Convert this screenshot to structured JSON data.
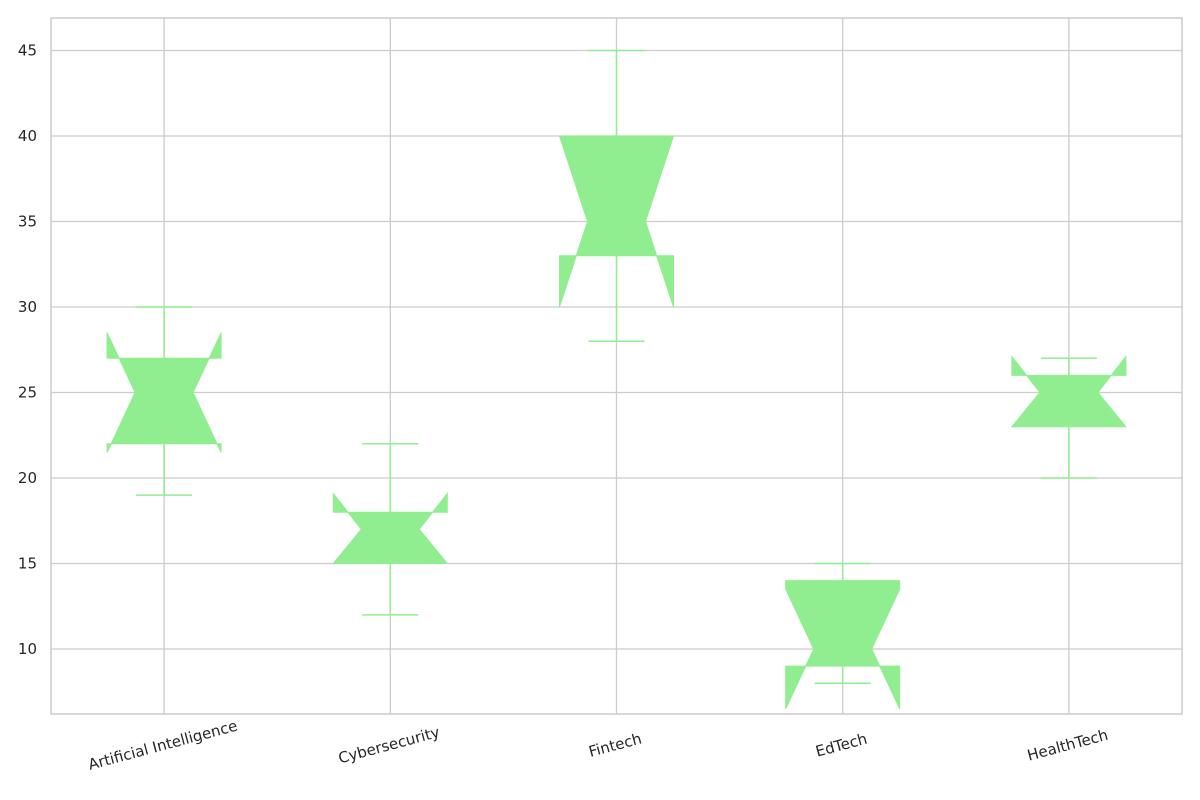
{
  "chart_data": {
    "type": "box",
    "notched": true,
    "categories": [
      "Artificial Intelligence",
      "Cybersecurity",
      "Fintech",
      "EdTech",
      "HealthTech"
    ],
    "boxes": [
      {
        "category": "Artificial Intelligence",
        "whisker_low": 19,
        "q1": 22,
        "median": 25,
        "q3": 27,
        "whisker_high": 30,
        "notch_low": 21.5,
        "notch_high": 28.5
      },
      {
        "category": "Cybersecurity",
        "whisker_low": 12,
        "q1": 15,
        "median": 17,
        "q3": 18,
        "whisker_high": 22,
        "notch_low": 15,
        "notch_high": 19.1
      },
      {
        "category": "Fintech",
        "whisker_low": 28,
        "q1": 33,
        "median": 35,
        "q3": 40,
        "whisker_high": 45,
        "notch_low": 30,
        "notch_high": 40
      },
      {
        "category": "EdTech",
        "whisker_low": 8,
        "q1": 9,
        "median": 10,
        "q3": 14,
        "whisker_high": 15,
        "notch_low": 6.5,
        "notch_high": 13.5
      },
      {
        "category": "HealthTech",
        "whisker_low": 20,
        "q1": 23,
        "median": 25,
        "q3": 26,
        "whisker_high": 27,
        "notch_low": 23,
        "notch_high": 27.1
      }
    ],
    "yticks": [
      10,
      15,
      20,
      25,
      30,
      35,
      40,
      45
    ],
    "ylim": [
      6.2,
      46.9
    ],
    "grid": true,
    "box_color": "#90ee90",
    "grid_color": "#cccccc",
    "title": "",
    "xlabel": "",
    "ylabel": ""
  }
}
